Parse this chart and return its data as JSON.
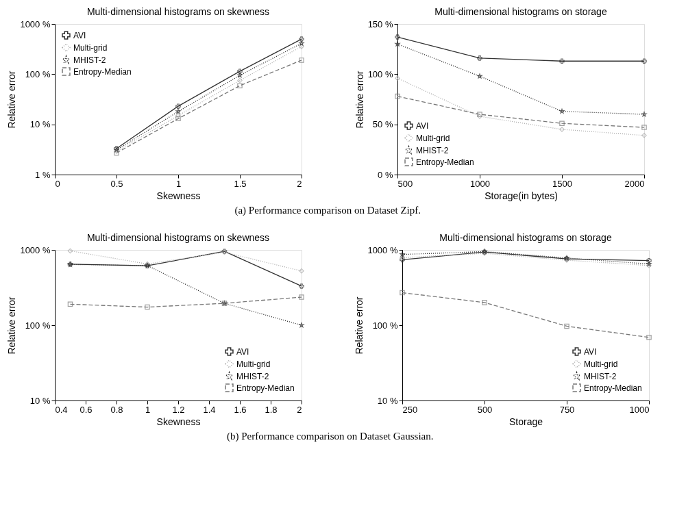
{
  "chart_data": [
    {
      "type": "line",
      "title": "Multi-dimensional histograms on skewness",
      "xlabel": "Skewness",
      "ylabel": "Relative error",
      "log": "y",
      "legend": "top left",
      "grid": false,
      "annotations": [
        "(a) Performance comparison on Dataset Zipf."
      ],
      "x": [
        0.5,
        1,
        1.5,
        2
      ],
      "xlim": [
        0,
        2
      ],
      "xticks": [
        0,
        0.5,
        1,
        1.5,
        2
      ],
      "ylim": [
        1,
        1000
      ],
      "yticks": [
        {
          "value": 1,
          "label": "1 %"
        },
        {
          "value": 10,
          "label": "10 %"
        },
        {
          "value": 100,
          "label": "100 %"
        },
        {
          "value": 1000,
          "label": "1000 %"
        }
      ],
      "series": [
        {
          "name": "AVI",
          "color": "#333333",
          "marker": "cross",
          "line_style": "solid",
          "values": [
            3.3,
            23,
            114,
            500
          ]
        },
        {
          "name": "Multi-grid",
          "color": "#aaaaaa",
          "marker": "diamond",
          "line_style": "dotted",
          "values": [
            2.9,
            15,
            75,
            355
          ]
        },
        {
          "name": "MHIST-2",
          "color": "#222222",
          "marker": "star",
          "line_style": "dotted",
          "values": [
            3.1,
            18,
            95,
            410
          ]
        },
        {
          "name": "Entropy-Median",
          "color": "#777777",
          "marker": "square",
          "line_style": "dashed",
          "values": [
            2.7,
            13,
            59,
            190
          ]
        }
      ]
    },
    {
      "type": "line",
      "title": "Multi-dimensional histograms on storage",
      "xlabel": "Storage(in bytes)",
      "ylabel": "Relative error",
      "legend": "bottom left",
      "grid": false,
      "x": [
        500,
        1000,
        1500,
        2000
      ],
      "xlim": [
        500,
        2000
      ],
      "xticks": [
        500,
        1000,
        1500,
        2000
      ],
      "ylim": [
        0,
        150
      ],
      "yticks": [
        {
          "value": 0,
          "label": "0 %"
        },
        {
          "value": 50,
          "label": "50 %"
        },
        {
          "value": 100,
          "label": "100 %"
        },
        {
          "value": 150,
          "label": "150 %"
        }
      ],
      "series": [
        {
          "name": "AVI",
          "color": "#333333",
          "marker": "cross",
          "line_style": "solid",
          "values": [
            137,
            116,
            113,
            113
          ]
        },
        {
          "name": "Multi-grid",
          "color": "#aaaaaa",
          "marker": "diamond",
          "line_style": "dotted",
          "values": [
            96,
            58,
            45,
            39
          ]
        },
        {
          "name": "MHIST-2",
          "color": "#222222",
          "marker": "star",
          "line_style": "dotted",
          "values": [
            130,
            98,
            63,
            60
          ]
        },
        {
          "name": "Entropy-Median",
          "color": "#777777",
          "marker": "square",
          "line_style": "dashed",
          "values": [
            78,
            60,
            51,
            47
          ]
        }
      ]
    },
    {
      "type": "line",
      "title": "Multi-dimensional histograms on skewness",
      "xlabel": "Skewness",
      "ylabel": "Relative error",
      "log": "y",
      "legend": "bottom right",
      "grid": false,
      "annotations": [
        "(b) Performance comparison on Dataset Gaussian."
      ],
      "x": [
        0.5,
        1,
        1.5,
        2
      ],
      "xlim": [
        0.4,
        2
      ],
      "xticks": [
        0.4,
        0.6,
        0.8,
        1,
        1.2,
        1.4,
        1.6,
        1.8,
        2
      ],
      "ylim": [
        10,
        1000
      ],
      "yticks": [
        {
          "value": 10,
          "label": "10 %"
        },
        {
          "value": 100,
          "label": "100 %"
        },
        {
          "value": 1000,
          "label": "1000 %"
        }
      ],
      "series": [
        {
          "name": "AVI",
          "color": "#333333",
          "marker": "cross",
          "line_style": "solid",
          "values": [
            645,
            615,
            955,
            330
          ]
        },
        {
          "name": "Multi-grid",
          "color": "#aaaaaa",
          "marker": "diamond",
          "line_style": "dotted",
          "values": [
            970,
            650,
            930,
            525
          ]
        },
        {
          "name": "MHIST-2",
          "color": "#222222",
          "marker": "star",
          "line_style": "dotted",
          "values": [
            640,
            620,
            195,
            100
          ]
        },
        {
          "name": "Entropy-Median",
          "color": "#777777",
          "marker": "square",
          "line_style": "dashed",
          "values": [
            190,
            174,
            195,
            236
          ]
        }
      ]
    },
    {
      "type": "line",
      "title": "Multi-dimensional histograms on storage",
      "xlabel": "Storage",
      "ylabel": "Relative error",
      "log": "y",
      "legend": "bottom right",
      "grid": false,
      "x": [
        250,
        500,
        750,
        1000
      ],
      "xlim": [
        250,
        1000
      ],
      "xticks": [
        250,
        500,
        750,
        1000
      ],
      "ylim": [
        10,
        1000
      ],
      "yticks": [
        {
          "value": 10,
          "label": "10 %"
        },
        {
          "value": 100,
          "label": "100 %"
        },
        {
          "value": 1000,
          "label": "1000 %"
        }
      ],
      "series": [
        {
          "name": "AVI",
          "color": "#333333",
          "marker": "cross",
          "line_style": "solid",
          "values": [
            740,
            935,
            760,
            720
          ]
        },
        {
          "name": "Multi-grid",
          "color": "#aaaaaa",
          "marker": "diamond",
          "line_style": "dotted",
          "values": [
            790,
            900,
            730,
            620
          ]
        },
        {
          "name": "MHIST-2",
          "color": "#222222",
          "marker": "star",
          "line_style": "dotted",
          "values": [
            870,
            950,
            780,
            650
          ]
        },
        {
          "name": "Entropy-Median",
          "color": "#777777",
          "marker": "square",
          "line_style": "dashed",
          "values": [
            270,
            200,
            97,
            69
          ]
        }
      ]
    }
  ]
}
